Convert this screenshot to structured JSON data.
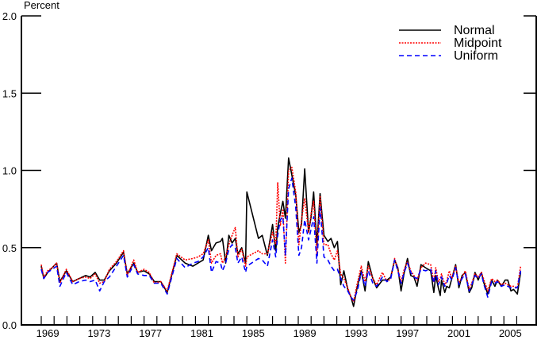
{
  "chart_data": {
    "type": "line",
    "title": "",
    "ylabel": "Percent",
    "xlabel": "",
    "ylim": [
      0,
      2.0
    ],
    "xlim": [
      1967.5,
      2007.5
    ],
    "yticks": [
      "0.0",
      "0.5",
      "1.0",
      "1.5",
      "2.0"
    ],
    "xtick_labels": [
      "1969",
      "1973",
      "1977",
      "1981",
      "1985",
      "1989",
      "1993",
      "1997",
      "2001",
      "2005"
    ],
    "grid": false,
    "legend_position": "top-right",
    "x": [
      1969.0,
      1969.2,
      1969.5,
      1969.85,
      1970.2,
      1970.45,
      1970.95,
      1971.45,
      1971.95,
      1972.45,
      1972.8,
      1973.2,
      1973.55,
      1973.9,
      1974.3,
      1974.85,
      1975.4,
      1975.7,
      1976.2,
      1976.5,
      1977.0,
      1977.4,
      1977.8,
      1978.3,
      1978.8,
      1979.55,
      1980.2,
      1980.8,
      1981.2,
      1981.6,
      1982.0,
      1982.25,
      1982.6,
      1982.95,
      1983.1,
      1983.35,
      1983.6,
      1983.85,
      1984.1,
      1984.3,
      1984.6,
      1984.9,
      1985.0,
      1985.9,
      1986.2,
      1986.6,
      1987.0,
      1987.25,
      1987.4,
      1987.6,
      1987.8,
      1988.0,
      1988.25,
      1988.5,
      1988.8,
      1989.05,
      1989.25,
      1989.5,
      1989.8,
      1990.0,
      1990.2,
      1990.45,
      1990.7,
      1991.0,
      1991.3,
      1991.55,
      1991.8,
      1992.05,
      1992.3,
      1992.55,
      1992.85,
      1993.1,
      1993.3,
      1993.6,
      1993.9,
      1994.2,
      1994.45,
      1994.8,
      1995.1,
      1995.55,
      1995.9,
      1996.2,
      1996.5,
      1996.75,
      1997.0,
      1997.25,
      1997.5,
      1997.75,
      1998.0,
      1998.25,
      1998.55,
      1998.9,
      1999.3,
      1999.55,
      1999.7,
      1999.9,
      2000.05,
      2000.15,
      2000.4,
      2000.55,
      2000.75,
      2000.95,
      2001.25,
      2001.5,
      2001.75,
      2002.0,
      2002.3,
      2002.5,
      2002.75,
      2003.0,
      2003.25,
      2003.45,
      2003.75,
      2004.05,
      2004.3,
      2004.5,
      2004.8,
      2005.1,
      2005.3,
      2005.55,
      2005.75,
      2006.05,
      2006.3
    ],
    "series": [
      {
        "name": "Normal",
        "color": "#000000",
        "style": "solid",
        "values": [
          0.38,
          0.3,
          0.34,
          0.37,
          0.4,
          0.28,
          0.35,
          0.28,
          0.3,
          0.32,
          0.31,
          0.34,
          0.29,
          0.29,
          0.35,
          0.4,
          0.47,
          0.33,
          0.4,
          0.34,
          0.35,
          0.33,
          0.28,
          0.28,
          0.21,
          0.45,
          0.4,
          0.38,
          0.4,
          0.42,
          0.58,
          0.48,
          0.53,
          0.54,
          0.56,
          0.4,
          0.58,
          0.53,
          0.56,
          0.46,
          0.5,
          0.4,
          0.86,
          0.56,
          0.58,
          0.45,
          0.65,
          0.48,
          0.63,
          0.72,
          0.8,
          0.69,
          1.08,
          0.97,
          0.84,
          0.6,
          0.65,
          1.01,
          0.6,
          0.7,
          0.86,
          0.52,
          0.85,
          0.58,
          0.54,
          0.56,
          0.5,
          0.54,
          0.26,
          0.35,
          0.23,
          0.18,
          0.12,
          0.25,
          0.35,
          0.22,
          0.41,
          0.3,
          0.24,
          0.29,
          0.29,
          0.31,
          0.42,
          0.37,
          0.22,
          0.34,
          0.43,
          0.32,
          0.31,
          0.25,
          0.39,
          0.37,
          0.35,
          0.21,
          0.32,
          0.24,
          0.19,
          0.29,
          0.21,
          0.25,
          0.24,
          0.3,
          0.39,
          0.24,
          0.32,
          0.34,
          0.21,
          0.24,
          0.34,
          0.29,
          0.34,
          0.27,
          0.2,
          0.29,
          0.25,
          0.29,
          0.25,
          0.29,
          0.29,
          0.22,
          0.23,
          0.2,
          0.34
        ]
      },
      {
        "name": "Midpoint",
        "color": "#ff0000",
        "style": "dotted",
        "values": [
          0.39,
          0.31,
          0.35,
          0.37,
          0.4,
          0.27,
          0.36,
          0.28,
          0.3,
          0.31,
          0.3,
          0.33,
          0.27,
          0.28,
          0.36,
          0.41,
          0.48,
          0.32,
          0.42,
          0.34,
          0.36,
          0.34,
          0.27,
          0.28,
          0.22,
          0.46,
          0.42,
          0.43,
          0.44,
          0.46,
          0.55,
          0.4,
          0.45,
          0.46,
          0.4,
          0.44,
          0.52,
          0.58,
          0.63,
          0.44,
          0.49,
          0.38,
          0.44,
          0.48,
          0.46,
          0.46,
          0.6,
          0.52,
          0.92,
          0.64,
          0.75,
          0.4,
          1.0,
          1.02,
          0.86,
          0.52,
          0.68,
          0.82,
          0.6,
          0.72,
          0.8,
          0.45,
          0.83,
          0.52,
          0.52,
          0.46,
          0.42,
          0.48,
          0.33,
          0.3,
          0.24,
          0.18,
          0.15,
          0.27,
          0.38,
          0.28,
          0.38,
          0.3,
          0.26,
          0.34,
          0.28,
          0.3,
          0.43,
          0.36,
          0.28,
          0.36,
          0.41,
          0.35,
          0.32,
          0.29,
          0.37,
          0.4,
          0.39,
          0.28,
          0.37,
          0.28,
          0.3,
          0.33,
          0.26,
          0.28,
          0.35,
          0.3,
          0.38,
          0.27,
          0.31,
          0.35,
          0.23,
          0.27,
          0.33,
          0.31,
          0.34,
          0.29,
          0.22,
          0.3,
          0.28,
          0.29,
          0.26,
          0.27,
          0.26,
          0.25,
          0.25,
          0.24,
          0.38
        ]
      },
      {
        "name": "Uniform",
        "color": "#0000ff",
        "style": "dashed",
        "values": [
          0.36,
          0.3,
          0.34,
          0.36,
          0.38,
          0.25,
          0.34,
          0.26,
          0.28,
          0.29,
          0.28,
          0.29,
          0.22,
          0.28,
          0.31,
          0.38,
          0.45,
          0.31,
          0.39,
          0.33,
          0.32,
          0.32,
          0.27,
          0.27,
          0.2,
          0.43,
          0.37,
          0.4,
          0.41,
          0.44,
          0.5,
          0.34,
          0.41,
          0.4,
          0.35,
          0.4,
          0.49,
          0.52,
          0.5,
          0.4,
          0.44,
          0.34,
          0.38,
          0.43,
          0.42,
          0.38,
          0.55,
          0.44,
          0.58,
          0.68,
          0.7,
          0.45,
          0.88,
          0.95,
          0.76,
          0.45,
          0.5,
          0.68,
          0.55,
          0.62,
          0.7,
          0.4,
          0.76,
          0.44,
          0.42,
          0.38,
          0.35,
          0.36,
          0.3,
          0.25,
          0.22,
          0.18,
          0.16,
          0.22,
          0.34,
          0.25,
          0.35,
          0.27,
          0.25,
          0.31,
          0.28,
          0.3,
          0.42,
          0.35,
          0.27,
          0.34,
          0.4,
          0.34,
          0.31,
          0.3,
          0.36,
          0.35,
          0.36,
          0.27,
          0.35,
          0.26,
          0.29,
          0.31,
          0.25,
          0.27,
          0.32,
          0.29,
          0.37,
          0.26,
          0.3,
          0.33,
          0.22,
          0.26,
          0.32,
          0.3,
          0.33,
          0.26,
          0.18,
          0.28,
          0.27,
          0.28,
          0.25,
          0.26,
          0.25,
          0.24,
          0.24,
          0.24,
          0.35
        ]
      }
    ]
  }
}
